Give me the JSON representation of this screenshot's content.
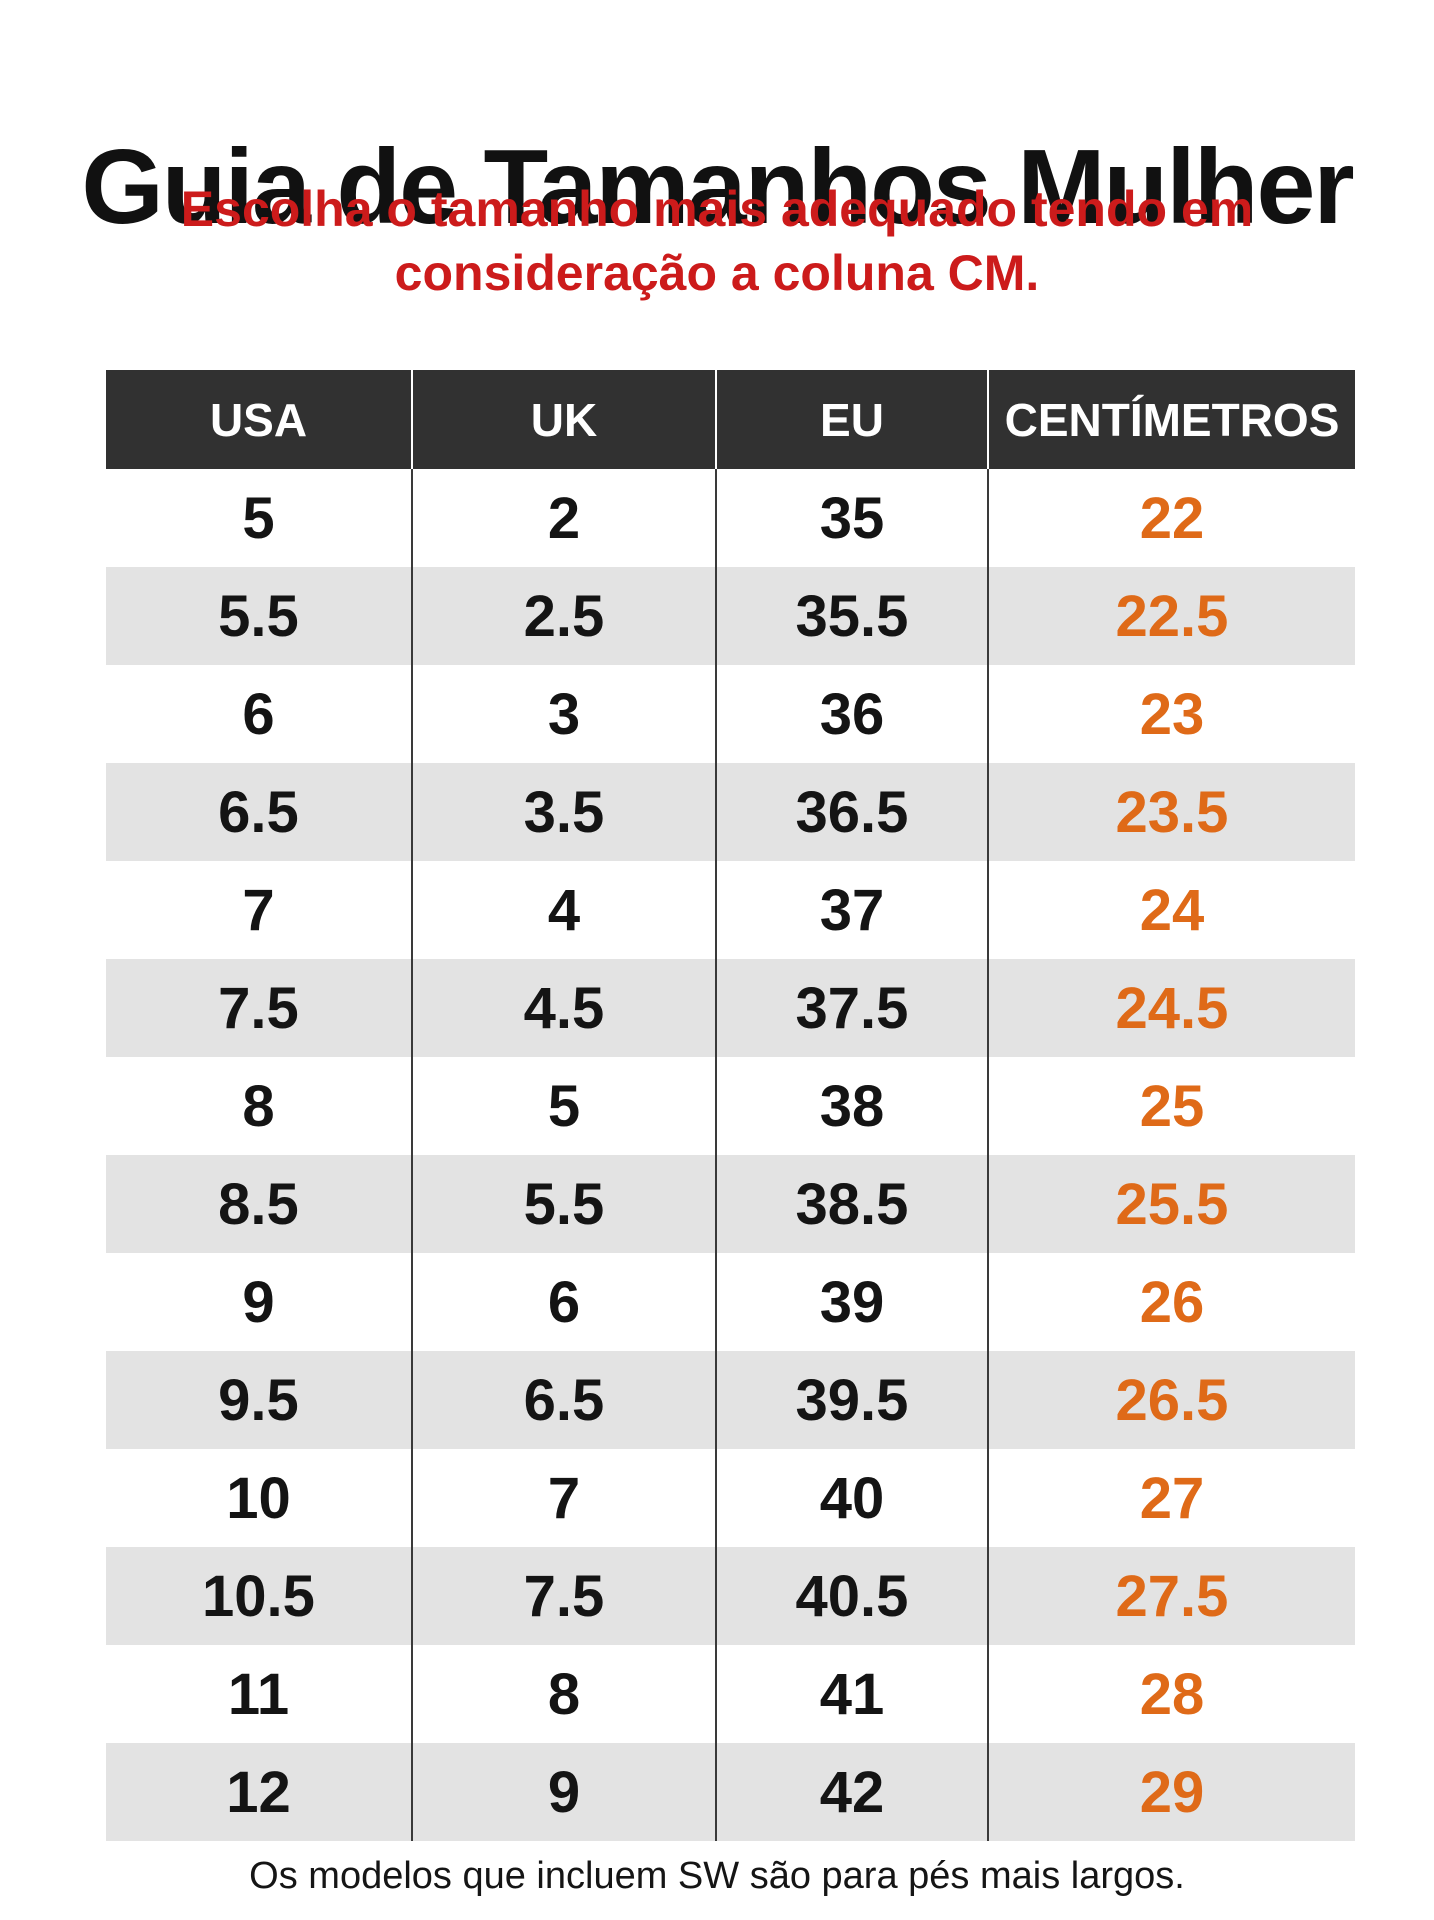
{
  "title": "Guia de Tamanhos Mulher",
  "subtitle": {
    "line1": "Escolha o tamanho mais adequado tendo em",
    "line2": "consideração a coluna CM."
  },
  "table": {
    "headers": [
      "USA",
      "UK",
      "EU",
      "CENTÍMETROS"
    ],
    "rows": [
      [
        "5",
        "2",
        "35",
        "22"
      ],
      [
        "5.5",
        "2.5",
        "35.5",
        "22.5"
      ],
      [
        "6",
        "3",
        "36",
        "23"
      ],
      [
        "6.5",
        "3.5",
        "36.5",
        "23.5"
      ],
      [
        "7",
        "4",
        "37",
        "24"
      ],
      [
        "7.5",
        "4.5",
        "37.5",
        "24.5"
      ],
      [
        "8",
        "5",
        "38",
        "25"
      ],
      [
        "8.5",
        "5.5",
        "38.5",
        "25.5"
      ],
      [
        "9",
        "6",
        "39",
        "26"
      ],
      [
        "9.5",
        "6.5",
        "39.5",
        "26.5"
      ],
      [
        "10",
        "7",
        "40",
        "27"
      ],
      [
        "10.5",
        "7.5",
        "40.5",
        "27.5"
      ],
      [
        "11",
        "8",
        "41",
        "28"
      ],
      [
        "12",
        "9",
        "42",
        "29"
      ]
    ]
  },
  "footnote": "Os modelos que incluem SW são para pés mais largos.",
  "colors": {
    "title": "#111111",
    "subtitle": "#cc1b1b",
    "header_bg": "#313131",
    "header_text": "#ffffff",
    "row_alt_bg": "#e3e3e3",
    "cm_value": "#df6a18"
  }
}
